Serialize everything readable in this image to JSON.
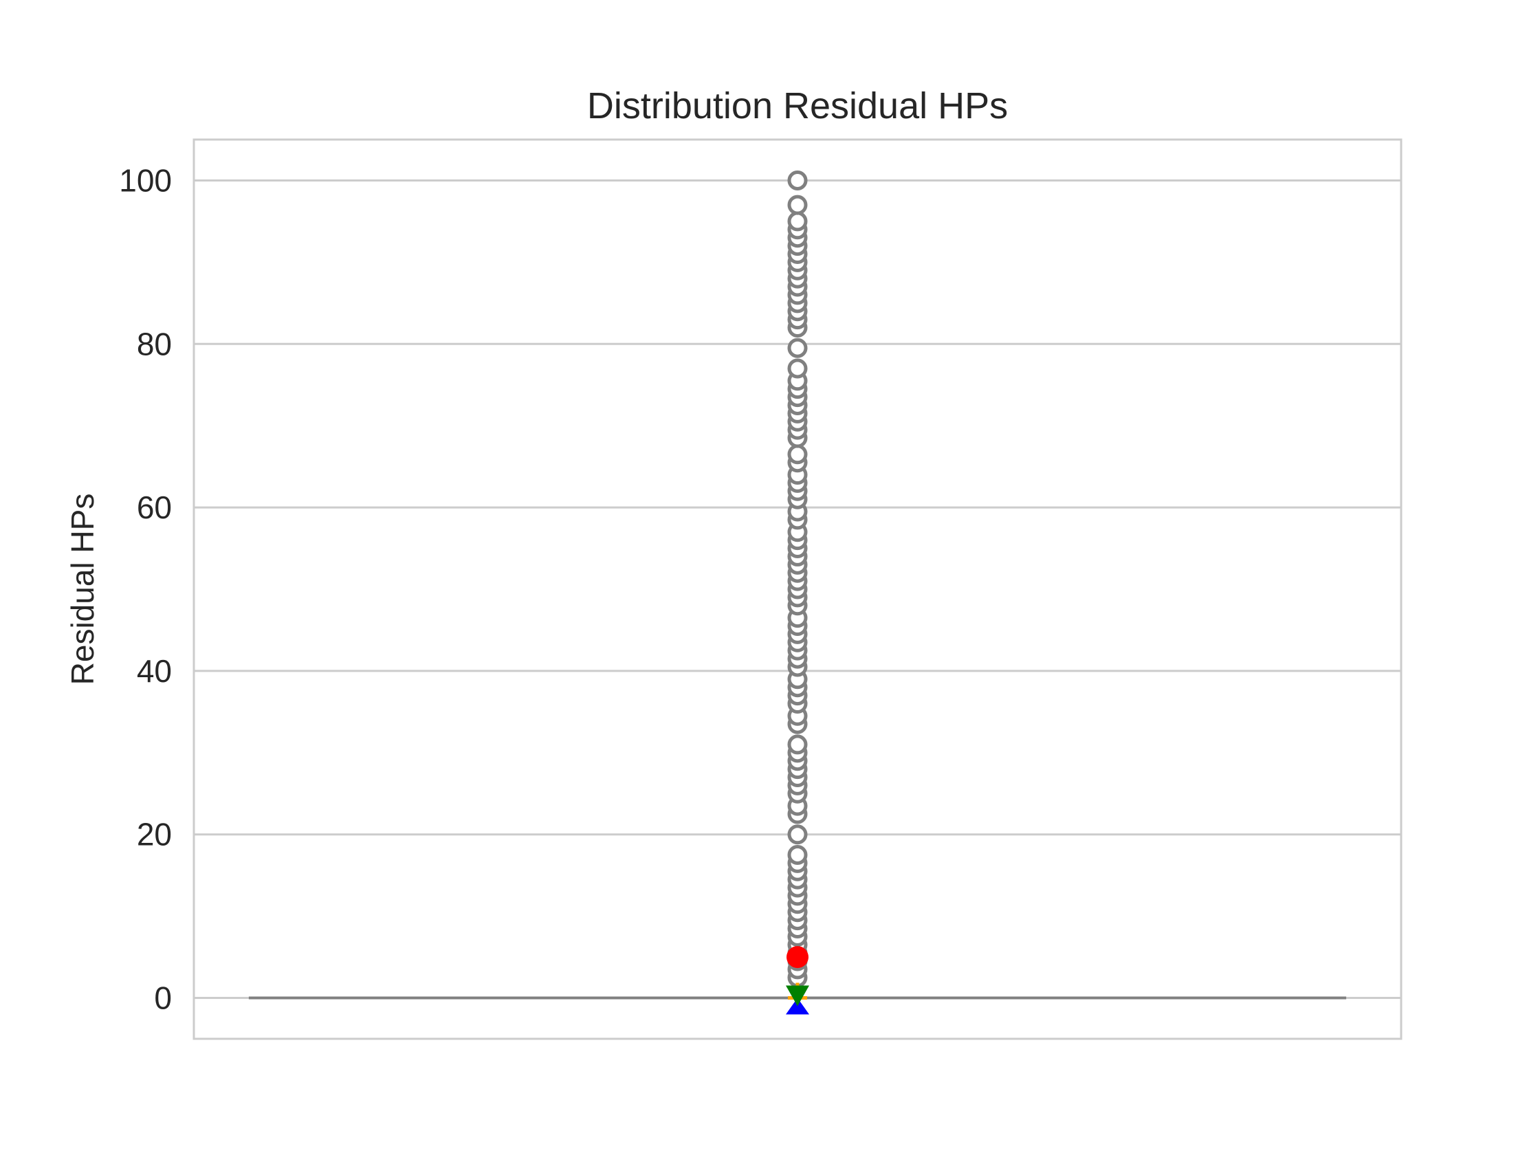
{
  "chart_data": {
    "type": "box",
    "title": "Distribution Residual HPs",
    "xlabel": "",
    "ylabel": "Residual HPs",
    "ylim": [
      -5,
      105
    ],
    "yticks": [
      0,
      20,
      40,
      60,
      80,
      100
    ],
    "grid": "y",
    "box": {
      "min": 0,
      "q1": 0,
      "median": 0,
      "q3": 0,
      "max": 0
    },
    "markers": {
      "mean": {
        "value": 5,
        "color": "#ff0000",
        "shape": "circle"
      },
      "green": {
        "value": 0,
        "color": "#008000",
        "shape": "triangle-down"
      },
      "blue": {
        "value": 0,
        "color": "#0000ff",
        "shape": "triangle-up"
      },
      "orange": {
        "value": 0,
        "color": "#ffa500",
        "shape": "plus"
      }
    },
    "outliers": [
      2.5,
      3.5,
      4.5,
      5.5,
      6.5,
      7.5,
      8.5,
      9.5,
      10.5,
      11.5,
      12.5,
      13.5,
      14.5,
      15.5,
      16.5,
      17.5,
      20,
      22.5,
      23.5,
      25,
      26,
      27,
      28,
      29,
      30,
      31,
      33.5,
      34.5,
      36,
      37,
      38,
      39,
      40.5,
      41.5,
      42.5,
      43.5,
      44.5,
      45.5,
      46.5,
      48,
      49,
      50,
      51,
      52,
      53,
      54,
      55,
      56,
      57,
      58.5,
      59.5,
      61,
      62,
      63,
      64,
      65.5,
      66.5,
      68.5,
      69.5,
      70.5,
      71.5,
      72.5,
      73.5,
      74.5,
      75.5,
      77,
      79.5,
      82,
      83,
      84,
      85,
      86,
      87,
      88,
      89,
      90,
      91,
      92,
      93,
      94,
      95,
      97,
      100
    ],
    "colors": {
      "outlier": "#808080",
      "box": "#808080",
      "grid": "#cccccc",
      "frame": "#cccccc",
      "text": "#262626"
    }
  }
}
